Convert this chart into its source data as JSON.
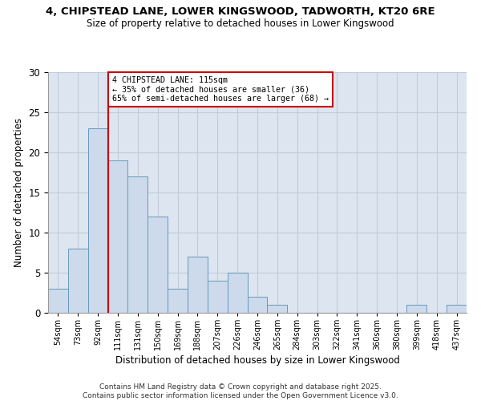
{
  "title1": "4, CHIPSTEAD LANE, LOWER KINGSWOOD, TADWORTH, KT20 6RE",
  "title2": "Size of property relative to detached houses in Lower Kingswood",
  "xlabel": "Distribution of detached houses by size in Lower Kingswood",
  "ylabel": "Number of detached properties",
  "bar_values": [
    3,
    8,
    23,
    19,
    17,
    12,
    3,
    7,
    4,
    5,
    2,
    1,
    0,
    0,
    0,
    0,
    0,
    0,
    1,
    0,
    1
  ],
  "bin_labels": [
    "54sqm",
    "73sqm",
    "92sqm",
    "111sqm",
    "131sqm",
    "150sqm",
    "169sqm",
    "188sqm",
    "207sqm",
    "226sqm",
    "246sqm",
    "265sqm",
    "284sqm",
    "303sqm",
    "322sqm",
    "341sqm",
    "360sqm",
    "380sqm",
    "399sqm",
    "418sqm",
    "437sqm"
  ],
  "bar_color": "#ccdaeb",
  "bar_edge_color": "#6699bb",
  "vline_color": "#cc0000",
  "annotation_text": "4 CHIPSTEAD LANE: 115sqm\n← 35% of detached houses are smaller (36)\n65% of semi-detached houses are larger (68) →",
  "annotation_box_color": "#cc0000",
  "ylim": [
    0,
    30
  ],
  "yticks": [
    0,
    5,
    10,
    15,
    20,
    25,
    30
  ],
  "grid_color": "#c0ccd8",
  "background_color": "#dde6f0",
  "footer1": "Contains HM Land Registry data © Crown copyright and database right 2025.",
  "footer2": "Contains public sector information licensed under the Open Government Licence v3.0."
}
